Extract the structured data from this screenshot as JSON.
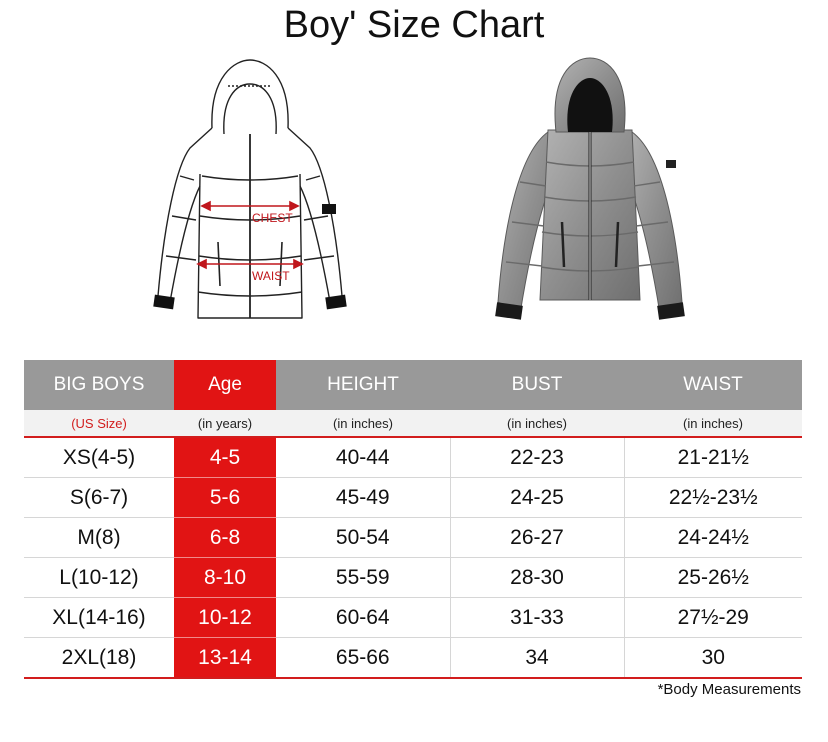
{
  "title": "Boy' Size Chart",
  "diagram": {
    "chest_label": "CHEST",
    "waist_label": "WAIST"
  },
  "photo": {
    "description_icon": "gray-puffer-jacket-photo"
  },
  "table": {
    "headers": [
      "BIG BOYS",
      "Age",
      "HEIGHT",
      "BUST",
      "WAIST"
    ],
    "units": [
      "(US Size)",
      "(in years)",
      "(in inches)",
      "(in inches)",
      "(in inches)"
    ],
    "rows": [
      [
        "XS(4-5)",
        "4-5",
        "40-44",
        "22-23",
        "21-21½"
      ],
      [
        "S(6-7)",
        "5-6",
        "45-49",
        "24-25",
        "22½-23½"
      ],
      [
        "M(8)",
        "6-8",
        "50-54",
        "26-27",
        "24-24½"
      ],
      [
        "L(10-12)",
        "8-10",
        "55-59",
        "28-30",
        "25-26½"
      ],
      [
        "XL(14-16)",
        "10-12",
        "60-64",
        "31-33",
        "27½-29"
      ],
      [
        "2XL(18)",
        "13-14",
        "65-66",
        "34",
        "30"
      ]
    ]
  },
  "note": "*Body Measurements",
  "colors": {
    "accent_red": "#e11414",
    "header_gray": "#999999",
    "units_bg": "#f2f2f2"
  }
}
